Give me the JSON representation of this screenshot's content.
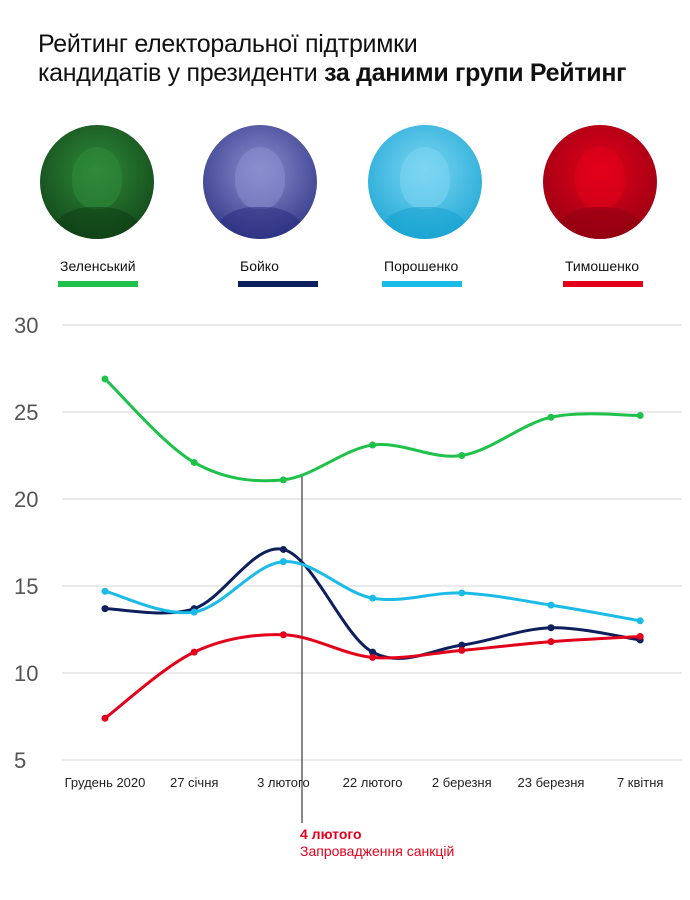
{
  "title": {
    "line1": "Рейтинг електоральної підтримки",
    "line2": "кандидатів у президенти ",
    "line2_bold": "за даними групи Рейтинг"
  },
  "annotation": {
    "date": "4 лютого",
    "text": "Запровадження санкцій"
  },
  "chart_data": {
    "type": "line",
    "title": "Рейтинг електоральної підтримки кандидатів у президенти за даними групи Рейтинг",
    "categories": [
      "Грудень 2020",
      "27 січня",
      "3 лютого",
      "22 лютого",
      "2 березня",
      "23 березня",
      "7 квітня"
    ],
    "ylim": [
      5,
      30
    ],
    "yticks": [
      "5",
      "10",
      "15",
      "20",
      "25",
      "30"
    ],
    "grid": true,
    "legend_position": "top",
    "series": [
      {
        "name": "Зеленський",
        "color": "#1ec24a",
        "values": [
          26.9,
          22.1,
          21.1,
          23.1,
          22.5,
          24.7,
          24.8
        ]
      },
      {
        "name": "Бойко",
        "color": "#0d1f5c",
        "values": [
          13.7,
          13.7,
          17.1,
          11.2,
          11.6,
          12.6,
          11.9
        ]
      },
      {
        "name": "Порошенко",
        "color": "#1bbbe8",
        "values": [
          14.7,
          13.5,
          16.4,
          14.3,
          14.6,
          13.9,
          13.0
        ]
      },
      {
        "name": "Тимошенко",
        "color": "#e3001b",
        "values": [
          7.4,
          11.2,
          12.2,
          10.9,
          11.3,
          11.8,
          12.1
        ]
      }
    ],
    "event_marker": {
      "position_between": [
        "3 лютого",
        "22 лютого"
      ],
      "label": "4 лютого"
    }
  }
}
